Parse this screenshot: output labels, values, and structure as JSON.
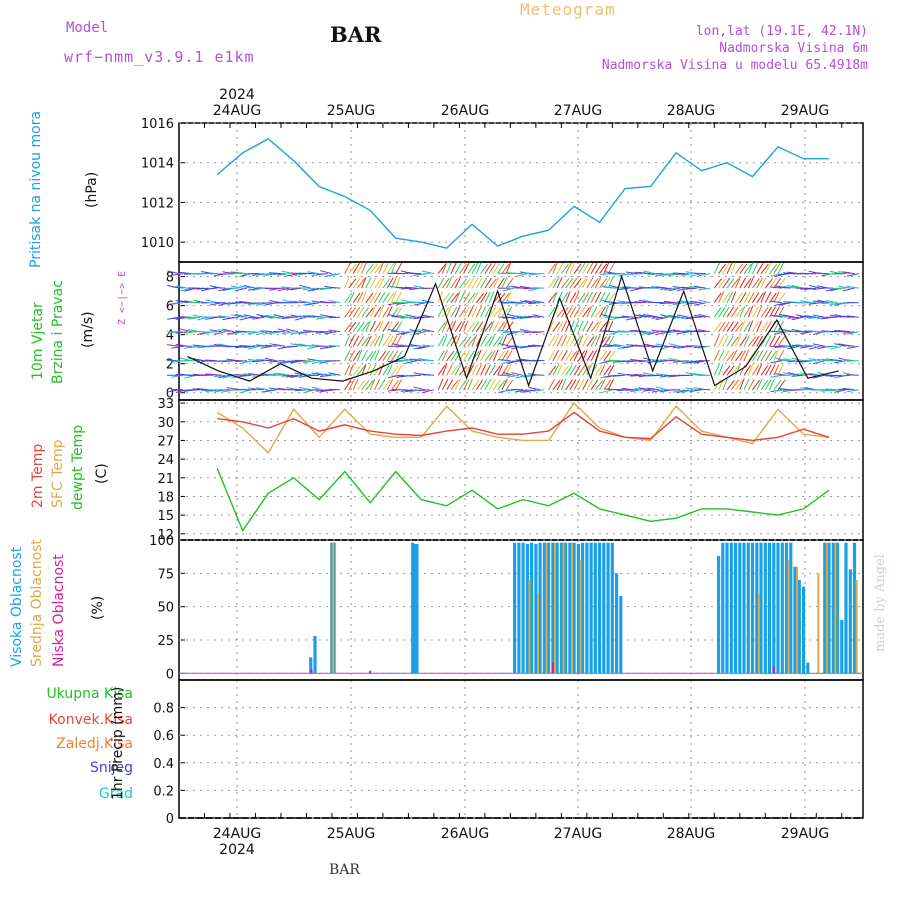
{
  "header": {
    "model_label": "Model",
    "model_name": "wrf−nmm_v3.9.1  e1km",
    "station": "BAR",
    "title": "Meteogram",
    "lonlat": "lon,lat (19.1E, 42.1N)",
    "elevation": "Nadmorska Visina 6m",
    "model_elevation": "Nadmorska Visina u modelu 65.4918m"
  },
  "footer": {
    "station": "BAR",
    "credit": "made by Angel"
  },
  "colors": {
    "pressure": "#1ca0e6",
    "t2m": "#e8433a",
    "sfc": "#e0a84a",
    "dewpt": "#22c022",
    "high_cloud": "#1aa0e6",
    "mid_cloud": "#e0a840",
    "low_cloud": "#d01ca0",
    "purple_text": "#b050d8",
    "title_orange": "#e8c070"
  },
  "chart_data": [
    {
      "panel": "pressure",
      "type": "line",
      "ylabel": "Pritisak na nivou mora",
      "yunit": "(hPa)",
      "ylim": [
        1009,
        1016
      ],
      "yticks": [
        "1010",
        "1012",
        "1014",
        "1016"
      ],
      "x_top": {
        "year": "2024",
        "days": [
          "24AUG",
          "25AUG",
          "26AUG",
          "27AUG",
          "28AUG",
          "29AUG"
        ]
      },
      "x_hours": [
        0,
        6,
        12,
        18,
        24,
        30,
        36,
        42,
        48,
        54,
        60,
        66,
        72,
        78,
        84,
        90,
        96,
        102,
        108,
        114,
        120,
        126,
        132,
        138,
        144
      ],
      "values": [
        1013.4,
        1014.5,
        1015.2,
        1014.1,
        1012.8,
        1012.3,
        1011.6,
        1010.2,
        1010.0,
        1009.7,
        1010.9,
        1009.8,
        1010.3,
        1010.6,
        1011.8,
        1011.0,
        1012.7,
        1012.8,
        1014.5,
        1013.6,
        1014.0,
        1013.3,
        1014.8,
        1014.2,
        1014.2
      ]
    },
    {
      "panel": "wind",
      "type": "barbs",
      "ylabels": [
        "10m Vjetar",
        "Brzina i Pravac"
      ],
      "yunit": "(m/s)",
      "compass": "Z <−|−> E",
      "ylim": [
        0,
        9
      ],
      "yticks": [
        "0",
        "2",
        "4",
        "6",
        "8"
      ]
    },
    {
      "panel": "temperature",
      "type": "line",
      "ylabels": [
        "2m Temp",
        "SFC Temp",
        "dewpt Temp"
      ],
      "yunit": "(C)",
      "ylim": [
        11,
        33.5
      ],
      "yticks": [
        "12",
        "15",
        "18",
        "21",
        "24",
        "27",
        "30",
        "33"
      ],
      "x_hours": [
        0,
        6,
        12,
        18,
        24,
        30,
        36,
        42,
        48,
        54,
        60,
        66,
        72,
        78,
        84,
        90,
        96,
        102,
        108,
        114,
        120,
        126,
        132,
        138,
        144
      ],
      "series": [
        {
          "name": "2m Temp",
          "values": [
            30.5,
            30.0,
            29.0,
            30.5,
            28.5,
            29.5,
            28.5,
            28.0,
            27.8,
            28.5,
            29.0,
            28.0,
            28.0,
            28.5,
            31.5,
            28.5,
            27.5,
            27.3,
            30.8,
            28.0,
            27.5,
            27.0,
            27.5,
            28.8,
            27.5
          ]
        },
        {
          "name": "SFC Temp",
          "values": [
            31.5,
            29.0,
            25.0,
            32.0,
            27.5,
            32.0,
            28.0,
            27.5,
            27.5,
            32.5,
            28.5,
            27.5,
            27.0,
            27.0,
            33.0,
            29.0,
            27.5,
            27.0,
            32.5,
            28.5,
            27.5,
            26.5,
            32.0,
            28.0,
            27.5
          ]
        },
        {
          "name": "dewpt Temp",
          "values": [
            22.5,
            12.5,
            18.5,
            21.0,
            17.5,
            22.0,
            17.0,
            22.0,
            17.5,
            16.5,
            19.0,
            16.0,
            17.5,
            16.5,
            18.5,
            16.0,
            15.0,
            14.0,
            14.5,
            16.0,
            16.0,
            15.5,
            15.0,
            16.0,
            19.0
          ]
        }
      ]
    },
    {
      "panel": "clouds",
      "type": "bar",
      "ylabels": [
        "Visoka Oblacnost",
        "Srednja Oblacnost",
        "Niska  Oblacnost"
      ],
      "yunit": "(%)",
      "ylim": [
        0,
        100
      ],
      "yticks": [
        "0",
        "25",
        "50",
        "75",
        "100"
      ],
      "high_bars": [
        {
          "h": 31,
          "v": 12
        },
        {
          "h": 32,
          "v": 28
        },
        {
          "h": 36,
          "v": 98
        },
        {
          "h": 36.5,
          "v": 98
        },
        {
          "h": 55,
          "v": 98
        },
        {
          "h": 55.5,
          "v": 97
        },
        {
          "h": 56,
          "v": 97
        },
        {
          "h": 79,
          "v": 98
        },
        {
          "h": 80,
          "v": 98
        },
        {
          "h": 81,
          "v": 98
        },
        {
          "h": 82,
          "v": 97
        },
        {
          "h": 83,
          "v": 98
        },
        {
          "h": 84,
          "v": 97
        },
        {
          "h": 85,
          "v": 98
        },
        {
          "h": 86,
          "v": 98
        },
        {
          "h": 87,
          "v": 98
        },
        {
          "h": 88,
          "v": 98
        },
        {
          "h": 89,
          "v": 98
        },
        {
          "h": 90,
          "v": 98
        },
        {
          "h": 91,
          "v": 98
        },
        {
          "h": 92,
          "v": 98
        },
        {
          "h": 93,
          "v": 98
        },
        {
          "h": 94,
          "v": 97
        },
        {
          "h": 95,
          "v": 98
        },
        {
          "h": 96,
          "v": 98
        },
        {
          "h": 97,
          "v": 98
        },
        {
          "h": 98,
          "v": 98
        },
        {
          "h": 99,
          "v": 98
        },
        {
          "h": 100,
          "v": 98
        },
        {
          "h": 101,
          "v": 98
        },
        {
          "h": 102,
          "v": 98
        },
        {
          "h": 103,
          "v": 75
        },
        {
          "h": 104,
          "v": 58
        },
        {
          "h": 127,
          "v": 88
        },
        {
          "h": 128,
          "v": 98
        },
        {
          "h": 129,
          "v": 98
        },
        {
          "h": 130,
          "v": 98
        },
        {
          "h": 131,
          "v": 98
        },
        {
          "h": 132,
          "v": 98
        },
        {
          "h": 133,
          "v": 98
        },
        {
          "h": 134,
          "v": 98
        },
        {
          "h": 135,
          "v": 98
        },
        {
          "h": 136,
          "v": 98
        },
        {
          "h": 137,
          "v": 98
        },
        {
          "h": 138,
          "v": 98
        },
        {
          "h": 139,
          "v": 98
        },
        {
          "h": 140,
          "v": 98
        },
        {
          "h": 141,
          "v": 98
        },
        {
          "h": 142,
          "v": 98
        },
        {
          "h": 143,
          "v": 98
        },
        {
          "h": 144,
          "v": 98
        },
        {
          "h": 145,
          "v": 80
        },
        {
          "h": 146,
          "v": 70
        },
        {
          "h": 147,
          "v": 65
        },
        {
          "h": 148,
          "v": 8
        },
        {
          "h": 152,
          "v": 98
        },
        {
          "h": 153,
          "v": 98
        },
        {
          "h": 154,
          "v": 98
        },
        {
          "h": 155,
          "v": 98
        },
        {
          "h": 156,
          "v": 40
        },
        {
          "h": 157,
          "v": 98
        },
        {
          "h": 158,
          "v": 78
        },
        {
          "h": 159,
          "v": 98
        }
      ],
      "mid_bars": [
        {
          "h": 36.3,
          "v": 98
        },
        {
          "h": 82.5,
          "v": 70
        },
        {
          "h": 84.5,
          "v": 60
        },
        {
          "h": 86.5,
          "v": 98
        },
        {
          "h": 88.5,
          "v": 98
        },
        {
          "h": 90.5,
          "v": 98
        },
        {
          "h": 92.5,
          "v": 98
        },
        {
          "h": 94.5,
          "v": 85
        },
        {
          "h": 136.5,
          "v": 60
        },
        {
          "h": 143.5,
          "v": 85
        },
        {
          "h": 145.5,
          "v": 80
        },
        {
          "h": 150.5,
          "v": 75
        },
        {
          "h": 152.5,
          "v": 98
        },
        {
          "h": 154.5,
          "v": 98
        },
        {
          "h": 159.5,
          "v": 70
        }
      ],
      "low_bars": [
        {
          "h": 31.2,
          "v": 3
        },
        {
          "h": 45,
          "v": 2
        },
        {
          "h": 88,
          "v": 8
        },
        {
          "h": 140,
          "v": 5
        }
      ]
    },
    {
      "panel": "precip",
      "type": "bar",
      "legend": [
        "Ukupna  Kisa",
        "Konvek.Kisa",
        "Zaledj.Kisa",
        "Snijeg",
        "Grad"
      ],
      "legend_colors": [
        "#22c022",
        "#e8433a",
        "#f08030",
        "#4040e0",
        "#20c8c8"
      ],
      "ylabel": "1hr Precip (mm)",
      "ylim": [
        0,
        1
      ],
      "yticks": [
        "0",
        "0.2",
        "0.4",
        "0.6",
        "0.8"
      ],
      "x_bottom": {
        "year": "2024",
        "days": [
          "24AUG",
          "25AUG",
          "26AUG",
          "27AUG",
          "28AUG",
          "29AUG"
        ]
      },
      "values": []
    }
  ]
}
